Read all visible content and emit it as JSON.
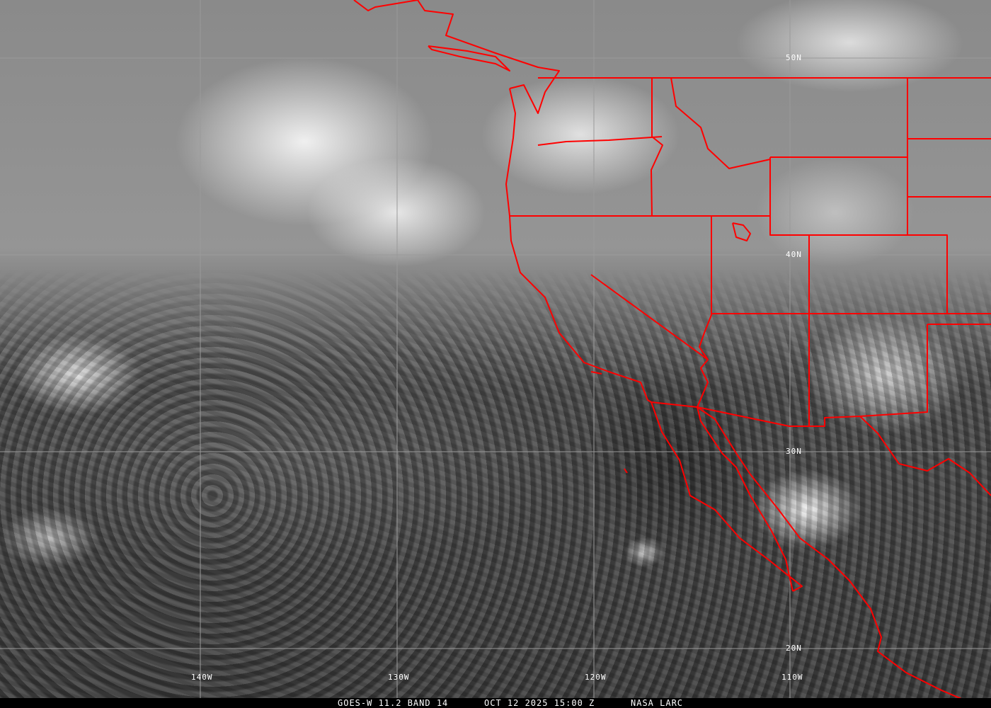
{
  "image": {
    "type": "satellite-infrared",
    "colors": {
      "border": "#ff0000",
      "grid": "#9a9a9a",
      "label": "#ffffff",
      "caption_bg": "#000000"
    }
  },
  "grid_labels": {
    "longitude": [
      "140W",
      "130W",
      "120W",
      "110W"
    ],
    "latitude": [
      "50N",
      "40N",
      "30N",
      "20N"
    ]
  },
  "caption": {
    "product": "GOES-W 11.2 BAND 14",
    "datetime": "OCT 12 2025 15:00 Z",
    "source": "NASA LARC"
  }
}
